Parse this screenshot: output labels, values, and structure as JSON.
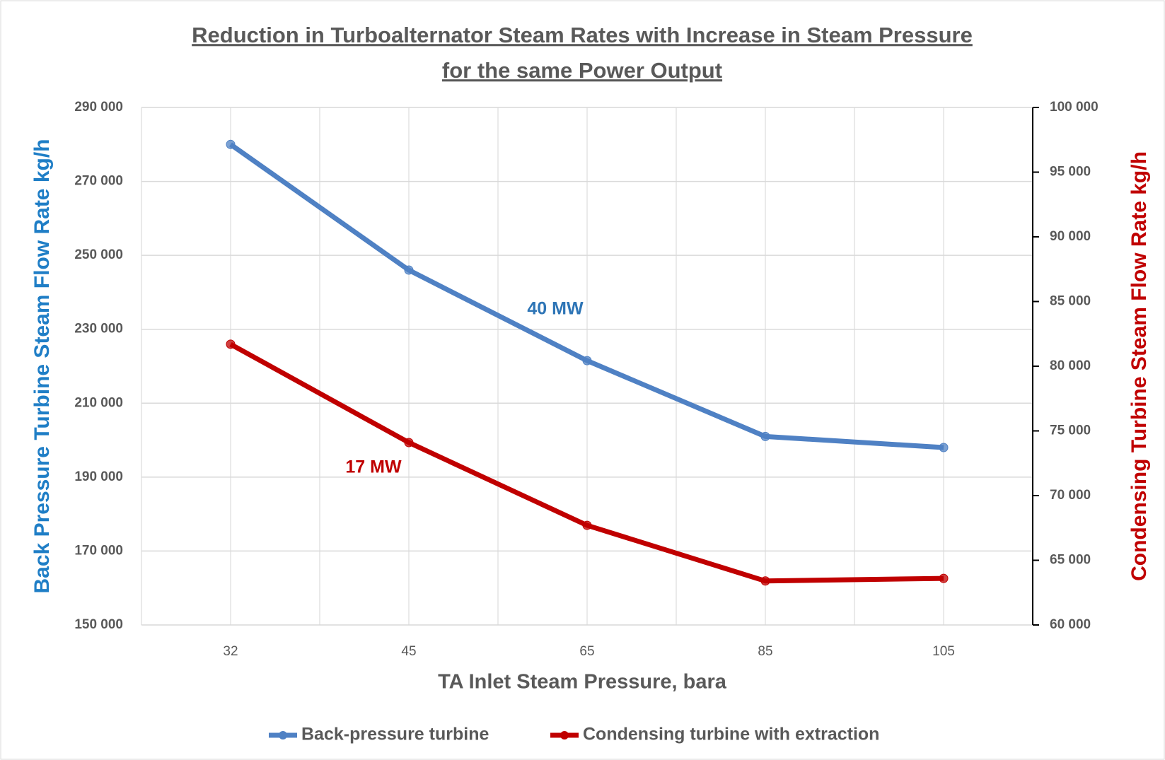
{
  "chart_data": {
    "type": "line",
    "title": [
      "Reduction in Turboalternator Steam Rates with Increase in Steam Pressure",
      "for the same Power Output"
    ],
    "xlabel": "TA Inlet Steam Pressure, bara",
    "ylabel": "Back Pressure Turbine Steam Flow Rate kg/h",
    "y2label": "Condensing Turbine Steam Flow Rate kg/h",
    "ylabel_color": "#1f7ec6",
    "y2label_color": "#c00000",
    "categories": [
      "32",
      "45",
      "65",
      "85",
      "105"
    ],
    "series": [
      {
        "name": "Back-pressure turbine",
        "color": "#4f81c4",
        "values": [
          280000,
          246000,
          221500,
          201000,
          198000
        ]
      },
      {
        "name": "Condensing turbine with extraction",
        "color": "#c00000",
        "axis": "y2",
        "values": [
          81700,
          74100,
          67700,
          63400,
          63600
        ]
      }
    ],
    "annotations": [
      {
        "text": "40 MW",
        "color": "#2e75b6"
      },
      {
        "text": "17 MW",
        "color": "#c00000"
      }
    ],
    "ylim": [
      150000,
      290000
    ],
    "yticks": [
      {
        "value": 150000,
        "label": "150 000"
      },
      {
        "value": 170000,
        "label": "170 000"
      },
      {
        "value": 190000,
        "label": "190 000"
      },
      {
        "value": 210000,
        "label": "210 000"
      },
      {
        "value": 230000,
        "label": "230 000"
      },
      {
        "value": 250000,
        "label": "250 000"
      },
      {
        "value": 270000,
        "label": "270 000"
      },
      {
        "value": 290000,
        "label": "290 000"
      }
    ],
    "y2lim": [
      60000,
      100000
    ],
    "y2ticks": [
      {
        "value": 60000,
        "label": "60 000"
      },
      {
        "value": 65000,
        "label": "65 000"
      },
      {
        "value": 70000,
        "label": "70 000"
      },
      {
        "value": 75000,
        "label": "75 000"
      },
      {
        "value": 80000,
        "label": "80 000"
      },
      {
        "value": 85000,
        "label": "85 000"
      },
      {
        "value": 90000,
        "label": "90 000"
      },
      {
        "value": 95000,
        "label": "95 000"
      },
      {
        "value": 100000,
        "label": "100 000"
      }
    ],
    "grid": true,
    "legend": "bottom"
  }
}
